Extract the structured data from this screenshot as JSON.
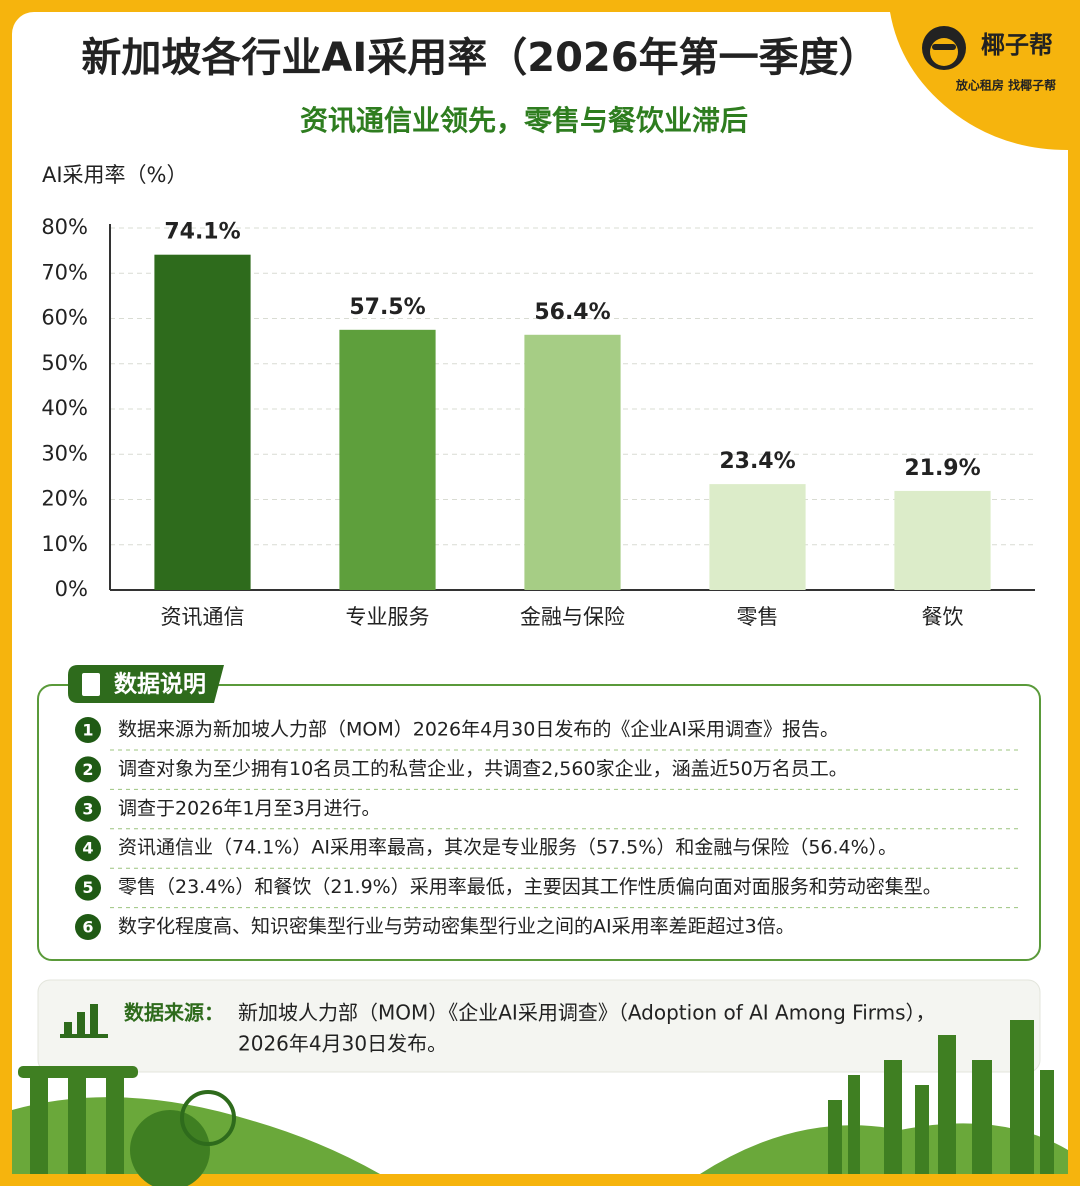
{
  "chart_data": {
    "type": "bar",
    "title": "新加坡各行业AI采用率（2026年第一季度）",
    "subtitle": "资讯通信业领先，零售与餐饮业滞后",
    "y_label": "AI采用率（%）",
    "categories": [
      "资讯通信",
      "专业服务",
      "金融与保险",
      "零售",
      "餐饮"
    ],
    "values": [
      74.1,
      57.5,
      56.4,
      23.4,
      21.9
    ],
    "value_labels": [
      "74.1%",
      "57.5%",
      "56.4%",
      "23.4%",
      "21.9%"
    ],
    "colors": [
      "#2e6b1c",
      "#5e9f3c",
      "#a6cd85",
      "#dcecc9",
      "#dcecc9"
    ],
    "ylim": [
      0,
      80
    ],
    "yticks": [
      {
        "value": 0,
        "label": "0%"
      },
      {
        "value": 10,
        "label": "10%"
      },
      {
        "value": 20,
        "label": "20%"
      },
      {
        "value": 30,
        "label": "30%"
      },
      {
        "value": 40,
        "label": "40%"
      },
      {
        "value": 50,
        "label": "50%"
      },
      {
        "value": 60,
        "label": "60%"
      },
      {
        "value": 70,
        "label": "70%"
      },
      {
        "value": 80,
        "label": "80%"
      }
    ],
    "grid": true
  },
  "brand": {
    "name": "椰子帮",
    "slogan": "放心租房  找椰子帮"
  },
  "notes": {
    "title": "数据说明",
    "items": [
      {
        "num": 1,
        "text": "数据来源为新加坡人力部（MOM）2026年4月30日发布的《企业AI采用调查》报告。"
      },
      {
        "num": 2,
        "text": "调查对象为至少拥有10名员工的私营企业，共调查2,560家企业，涵盖近50万名员工。"
      },
      {
        "num": 3,
        "text": "调查于2026年1月至3月进行。"
      },
      {
        "num": 4,
        "text": "资讯通信业（74.1%）AI采用率最高，其次是专业服务（57.5%）和金融与保险（56.4%）。"
      },
      {
        "num": 5,
        "text": "零售（23.4%）和餐饮（21.9%）采用率最低，主要因其工作性质偏向面对面服务和劳动密集型。"
      },
      {
        "num": 6,
        "text": "数字化程度高、知识密集型行业与劳动密集型行业之间的AI采用率差距超过3倍。"
      }
    ]
  },
  "source": {
    "label": "数据来源：",
    "lines": [
      "新加坡人力部（MOM）《企业AI采用调查》（Adoption of AI Among Firms），",
      "2026年4月30日发布。"
    ]
  }
}
